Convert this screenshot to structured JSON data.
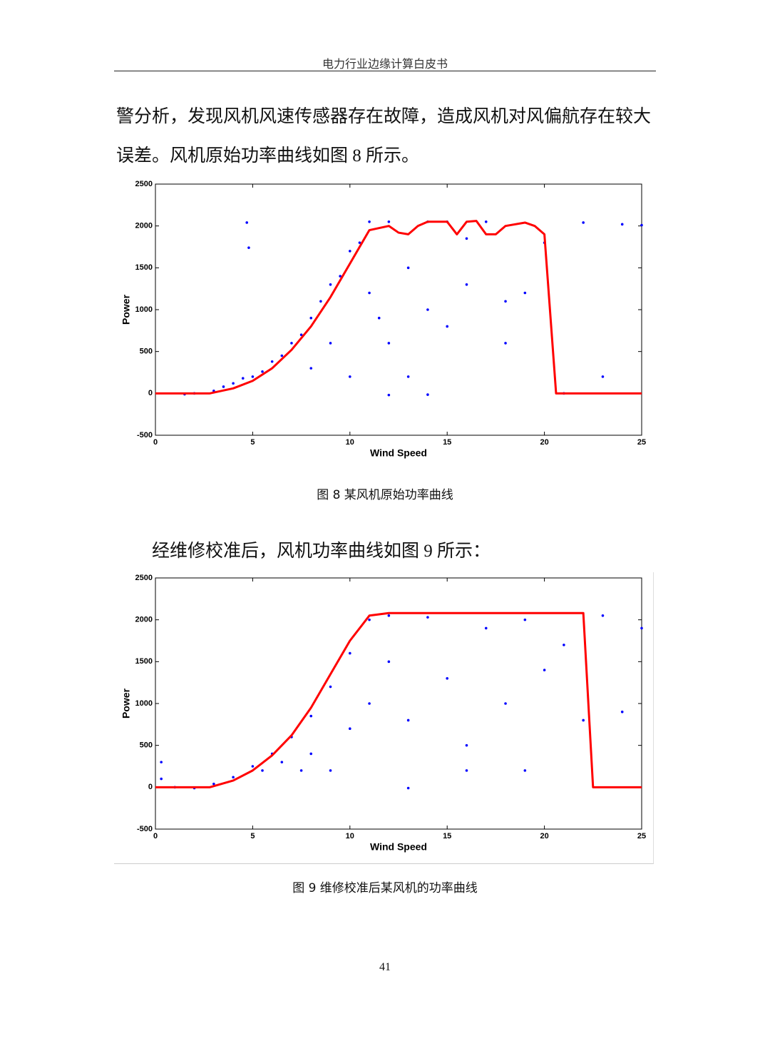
{
  "header": {
    "title": "电力行业边缘计算白皮书"
  },
  "paragraphs": [
    "警分析，发现风机风速传感器存在故障，造成风机对风偏航存在较大",
    "误差。风机原始功率曲线如图 8 所示。",
    "经维修校准后，风机功率曲线如图 9 所示："
  ],
  "captions": [
    "图 8 某风机原始功率曲线",
    "图 9 维修校准后某风机的功率曲线"
  ],
  "page_number": "41",
  "chart_data": [
    {
      "type": "scatter",
      "xlabel": "Wind Speed",
      "ylabel": "Power",
      "xlim": [
        0,
        25
      ],
      "ylim": [
        -500,
        2500
      ],
      "xticks": [
        0,
        5,
        10,
        15,
        20,
        25
      ],
      "yticks": [
        -500,
        0,
        500,
        1000,
        1500,
        2000,
        2500
      ],
      "series": [
        {
          "type": "scatter",
          "color": "#0000ff",
          "x": [
            1.5,
            2,
            3,
            3.5,
            4,
            4.5,
            4.7,
            4.8,
            5,
            5.5,
            6,
            6.5,
            7,
            7.5,
            8,
            8,
            8.5,
            9,
            9,
            9.5,
            10,
            10,
            10.5,
            11,
            11,
            11.5,
            12,
            12,
            13,
            13,
            14,
            14,
            15,
            15,
            16,
            17,
            18,
            19,
            20,
            21,
            22,
            23,
            24,
            25,
            12,
            14,
            16,
            18
          ],
          "values": [
            -10,
            0,
            30,
            80,
            120,
            180,
            2040,
            1740,
            200,
            260,
            380,
            450,
            600,
            700,
            900,
            300,
            1100,
            1300,
            600,
            1400,
            1700,
            200,
            1800,
            2050,
            1200,
            900,
            2050,
            600,
            1500,
            200,
            2050,
            1000,
            2050,
            800,
            1300,
            2050,
            600,
            1200,
            1800,
            0,
            2040,
            200,
            2020,
            2010,
            -20,
            -15,
            1850,
            1100
          ]
        },
        {
          "type": "line",
          "color": "#ff0000",
          "x": [
            0,
            2.8,
            4,
            5,
            6,
            7,
            8,
            9,
            10,
            11,
            12,
            12.5,
            13,
            13.5,
            14,
            15,
            15.5,
            16,
            16.5,
            17,
            17.5,
            18,
            19,
            19.5,
            20,
            20.6,
            25
          ],
          "values": [
            0,
            0,
            60,
            150,
            300,
            520,
            800,
            1150,
            1550,
            1950,
            2000,
            1920,
            1900,
            2000,
            2050,
            2050,
            1900,
            2050,
            2060,
            1900,
            1900,
            2000,
            2040,
            2000,
            1900,
            0,
            0
          ]
        }
      ]
    },
    {
      "type": "scatter",
      "xlabel": "Wind Speed",
      "ylabel": "Power",
      "xlim": [
        0,
        25
      ],
      "ylim": [
        -500,
        2500
      ],
      "xticks": [
        0,
        5,
        10,
        15,
        20,
        25
      ],
      "yticks": [
        -500,
        0,
        500,
        1000,
        1500,
        2000,
        2500
      ],
      "series": [
        {
          "type": "scatter",
          "color": "#0000ff",
          "x": [
            0.3,
            0.3,
            1,
            2,
            3,
            4,
            5,
            5.5,
            6,
            6.5,
            7,
            7.5,
            8,
            8,
            9,
            9,
            10,
            10,
            11,
            11,
            12,
            12,
            13,
            14,
            15,
            16,
            17,
            18,
            19,
            20,
            21,
            22,
            23,
            24,
            25,
            13,
            16,
            19
          ],
          "values": [
            300,
            100,
            0,
            -10,
            40,
            120,
            250,
            200,
            400,
            300,
            600,
            200,
            850,
            400,
            1200,
            200,
            1600,
            700,
            2000,
            1000,
            2050,
            1500,
            800,
            2030,
            1300,
            200,
            1900,
            1000,
            2000,
            1400,
            1700,
            800,
            2050,
            900,
            1900,
            -10,
            500,
            200
          ]
        },
        {
          "type": "line",
          "color": "#ff0000",
          "x": [
            0,
            2.8,
            4,
            5,
            6,
            7,
            8,
            9,
            10,
            11,
            12,
            22,
            22.5,
            25
          ],
          "values": [
            0,
            0,
            80,
            200,
            380,
            620,
            950,
            1350,
            1750,
            2050,
            2080,
            2080,
            0,
            0
          ]
        }
      ]
    }
  ]
}
